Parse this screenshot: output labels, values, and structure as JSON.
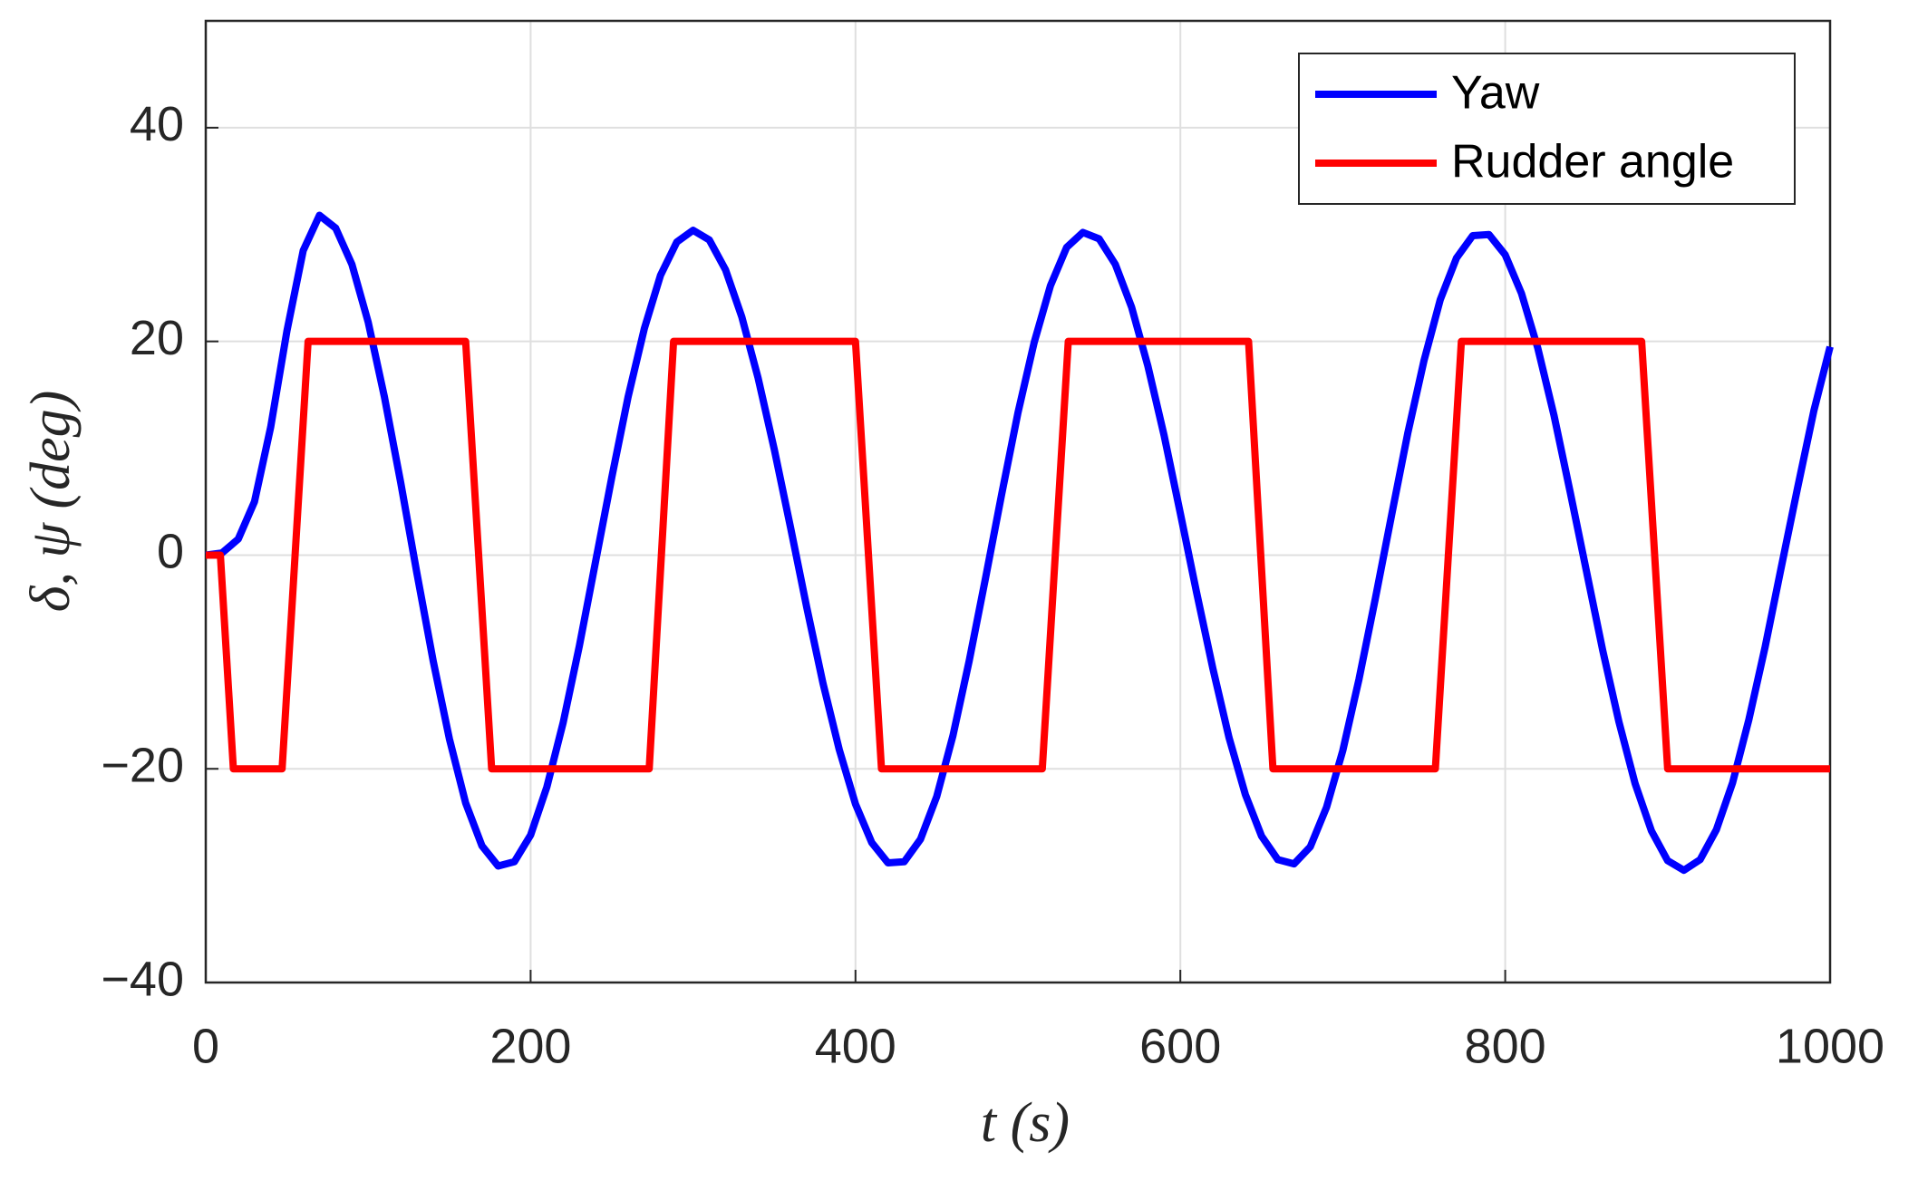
{
  "chart_data": {
    "type": "line",
    "xlabel": "t (s)",
    "ylabel": "δ, ψ (deg)",
    "xlim": [
      0,
      1000
    ],
    "xticks": [
      0,
      200,
      400,
      600,
      800,
      1000
    ],
    "ylim": [
      -40,
      50
    ],
    "yticks": [
      {
        "value": -40,
        "label": "−40"
      },
      {
        "value": -20,
        "label": "−20"
      },
      0,
      20,
      40
    ],
    "grid": true,
    "legend": "upper right",
    "series": [
      {
        "name": "Yaw",
        "color": "#0000ff",
        "x": [
          0,
          10,
          20,
          30,
          40,
          50,
          60,
          70,
          80,
          90,
          100,
          110,
          120,
          130,
          140,
          150,
          160,
          170,
          180,
          190,
          200,
          210,
          220,
          230,
          240,
          250,
          260,
          270,
          280,
          290,
          300,
          310,
          320,
          330,
          340,
          350,
          360,
          370,
          380,
          390,
          400,
          410,
          420,
          430,
          440,
          450,
          460,
          470,
          480,
          490,
          500,
          510,
          520,
          530,
          540,
          550,
          560,
          570,
          580,
          590,
          600,
          610,
          620,
          630,
          640,
          650,
          660,
          670,
          680,
          690,
          700,
          710,
          720,
          730,
          740,
          750,
          760,
          770,
          780,
          790,
          800,
          810,
          820,
          830,
          840,
          850,
          860,
          870,
          880,
          890,
          900,
          910,
          920,
          930,
          940,
          950,
          960,
          970,
          980,
          990,
          1000
        ],
        "values": [
          0,
          0.2,
          1.5,
          5,
          12,
          21,
          28.5,
          31.8,
          30.6,
          27.2,
          21.8,
          14.8,
          6.8,
          -1.7,
          -9.9,
          -17.2,
          -23.2,
          -27.2,
          -29.1,
          -28.7,
          -26.2,
          -21.7,
          -15.7,
          -8.5,
          -0.6,
          7.3,
          14.8,
          21.2,
          26.2,
          29.3,
          30.4,
          29.5,
          26.7,
          22.3,
          16.6,
          9.9,
          2.6,
          -4.9,
          -12.0,
          -18.2,
          -23.3,
          -26.9,
          -28.8,
          -28.7,
          -26.6,
          -22.6,
          -16.9,
          -9.9,
          -2.2,
          5.7,
          13.3,
          19.9,
          25.2,
          28.8,
          30.2,
          29.6,
          27.2,
          23.2,
          17.7,
          11.2,
          3.9,
          -3.5,
          -10.6,
          -17.1,
          -22.4,
          -26.3,
          -28.5,
          -28.9,
          -27.3,
          -23.6,
          -18.3,
          -11.6,
          -4.1,
          3.7,
          11.4,
          18.2,
          23.9,
          27.8,
          29.9,
          30.0,
          28.1,
          24.5,
          19.4,
          13.1,
          5.9,
          -1.5,
          -8.9,
          -15.6,
          -21.4,
          -25.8,
          -28.6,
          -29.5,
          -28.5,
          -25.7,
          -21.3,
          -15.4,
          -8.6,
          -1.1,
          6.3,
          13.5,
          19.5
        ]
      },
      {
        "name": "Rudder angle",
        "color": "#ff0000",
        "x": [
          0,
          9,
          17,
          47,
          63,
          160,
          176,
          273,
          288,
          400,
          416,
          515,
          531,
          642,
          657,
          757,
          773,
          884,
          900,
          1000
        ],
        "values": [
          0,
          0,
          -20,
          -20,
          20,
          20,
          -20,
          -20,
          20,
          20,
          -20,
          -20,
          20,
          20,
          -20,
          -20,
          20,
          20,
          -20,
          -20
        ]
      }
    ]
  }
}
